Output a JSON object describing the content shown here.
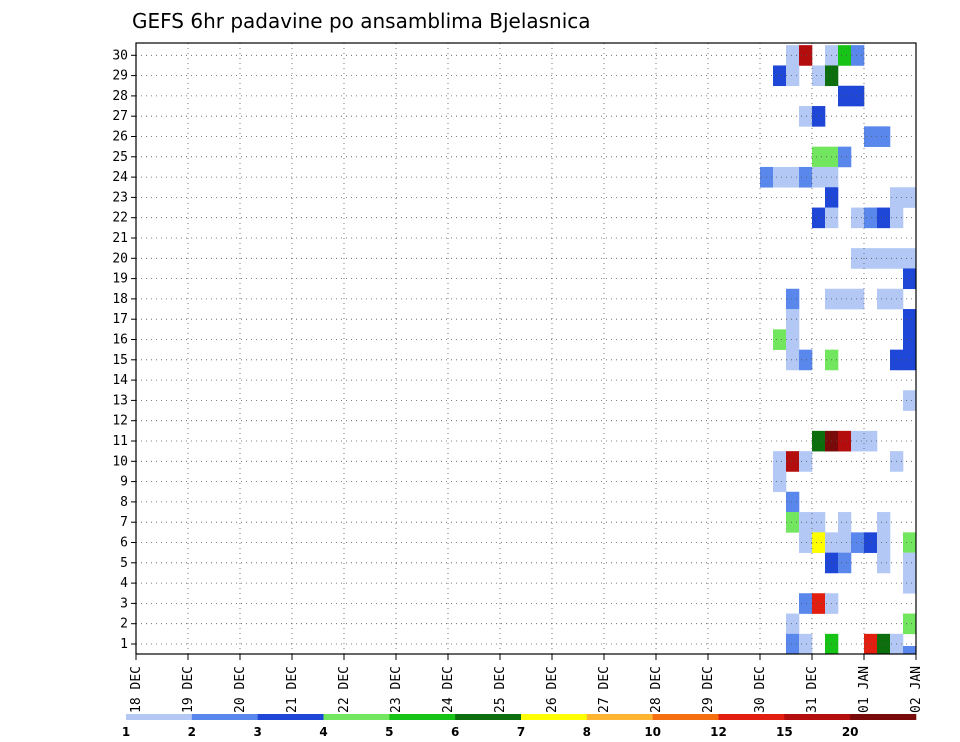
{
  "chart_data": {
    "type": "heatmap",
    "title": "GEFS 6hr padavine po ansamblima Bjelasnica",
    "x_tick_labels": [
      "18 DEC",
      "19 DEC",
      "20 DEC",
      "21 DEC",
      "22 DEC",
      "23 DEC",
      "24 DEC",
      "25 DEC",
      "26 DEC",
      "27 DEC",
      "28 DEC",
      "29 DEC",
      "30 DEC",
      "31 DEC",
      "01 JAN",
      "02 JAN"
    ],
    "y_tick_labels": [
      "1",
      "2",
      "3",
      "4",
      "5",
      "6",
      "7",
      "8",
      "9",
      "10",
      "11",
      "12",
      "13",
      "14",
      "15",
      "16",
      "17",
      "18",
      "19",
      "20",
      "21",
      "22",
      "23",
      "24",
      "25",
      "26",
      "27",
      "28",
      "29",
      "30"
    ],
    "x_range_days": [
      0,
      15
    ],
    "steps_per_day": 4,
    "member_range": [
      1,
      30
    ],
    "grid": true,
    "colorbar": {
      "labels": [
        "1",
        "2",
        "3",
        "4",
        "5",
        "6",
        "7",
        "8",
        "10",
        "12",
        "15",
        "20"
      ],
      "colors": [
        "#b4c8f5",
        "#5a87eb",
        "#1e46d7",
        "#73e65f",
        "#17c317",
        "#0d6e0d",
        "#ffff00",
        "#ffb432",
        "#f56e0f",
        "#e11e0f",
        "#b40d0d",
        "#780a0a"
      ]
    },
    "levels_note": "cells: [member, timestep_index, color_class_index]",
    "cells": [
      [
        30,
        50,
        0
      ],
      [
        30,
        51,
        10
      ],
      [
        30,
        53,
        0
      ],
      [
        30,
        54,
        4
      ],
      [
        30,
        55,
        1
      ],
      [
        30,
        62,
        0
      ],
      [
        30,
        63,
        2
      ],
      [
        30,
        64,
        2
      ],
      [
        30,
        69,
        3
      ],
      [
        29,
        49,
        2
      ],
      [
        29,
        50,
        0
      ],
      [
        29,
        52,
        0
      ],
      [
        29,
        53,
        5
      ],
      [
        29,
        61,
        0
      ],
      [
        29,
        62,
        1
      ],
      [
        29,
        64,
        1
      ],
      [
        29,
        69,
        0
      ],
      [
        29,
        70,
        0
      ],
      [
        28,
        54,
        2
      ],
      [
        28,
        55,
        2
      ],
      [
        28,
        64,
        4
      ],
      [
        28,
        65,
        11
      ],
      [
        28,
        66,
        10
      ],
      [
        28,
        67,
        9
      ],
      [
        28,
        68,
        1
      ],
      [
        28,
        69,
        3
      ],
      [
        28,
        70,
        4
      ],
      [
        28,
        71,
        0
      ],
      [
        28,
        74,
        4
      ],
      [
        28,
        76,
        1
      ],
      [
        28,
        77,
        2
      ],
      [
        28,
        78,
        6
      ],
      [
        28,
        79,
        2
      ],
      [
        28,
        80,
        0
      ],
      [
        28,
        88,
        0
      ],
      [
        28,
        89,
        1
      ],
      [
        27,
        51,
        0
      ],
      [
        27,
        52,
        2
      ],
      [
        27,
        62,
        0
      ],
      [
        27,
        69,
        0
      ],
      [
        27,
        79,
        0
      ],
      [
        27,
        80,
        3
      ],
      [
        27,
        82,
        0
      ],
      [
        26,
        56,
        1
      ],
      [
        26,
        57,
        1
      ],
      [
        26,
        60,
        0
      ],
      [
        26,
        61,
        1
      ],
      [
        26,
        62,
        4
      ],
      [
        26,
        63,
        1
      ],
      [
        26,
        64,
        1
      ],
      [
        26,
        65,
        0
      ],
      [
        26,
        66,
        3
      ],
      [
        26,
        67,
        0
      ],
      [
        26,
        68,
        3
      ],
      [
        26,
        69,
        2
      ],
      [
        26,
        70,
        0
      ],
      [
        26,
        71,
        0
      ],
      [
        26,
        72,
        0
      ],
      [
        26,
        74,
        0
      ],
      [
        26,
        75,
        1
      ],
      [
        26,
        89,
        0
      ],
      [
        25,
        52,
        3
      ],
      [
        25,
        53,
        3
      ],
      [
        25,
        54,
        1
      ],
      [
        25,
        61,
        4
      ],
      [
        25,
        62,
        2
      ],
      [
        25,
        64,
        2
      ],
      [
        25,
        65,
        2
      ],
      [
        25,
        75,
        0
      ],
      [
        25,
        76,
        1
      ],
      [
        25,
        78,
        4
      ],
      [
        25,
        79,
        3
      ],
      [
        25,
        80,
        0
      ],
      [
        25,
        81,
        0
      ],
      [
        25,
        83,
        6
      ],
      [
        25,
        84,
        0
      ],
      [
        25,
        90,
        9
      ],
      [
        24,
        48,
        1
      ],
      [
        24,
        49,
        0
      ],
      [
        24,
        50,
        0
      ],
      [
        24,
        51,
        1
      ],
      [
        24,
        52,
        0
      ],
      [
        24,
        53,
        0
      ],
      [
        24,
        62,
        2
      ],
      [
        24,
        63,
        0
      ],
      [
        24,
        64,
        0
      ],
      [
        24,
        77,
        2
      ],
      [
        24,
        78,
        2
      ],
      [
        24,
        79,
        6
      ],
      [
        24,
        80,
        6
      ],
      [
        24,
        83,
        2
      ],
      [
        24,
        84,
        0
      ],
      [
        24,
        85,
        1
      ],
      [
        24,
        86,
        0
      ],
      [
        23,
        53,
        2
      ],
      [
        23,
        58,
        0
      ],
      [
        23,
        59,
        0
      ],
      [
        23,
        60,
        0
      ],
      [
        23,
        61,
        0
      ],
      [
        23,
        85,
        1
      ],
      [
        23,
        86,
        1
      ],
      [
        22,
        52,
        2
      ],
      [
        22,
        53,
        0
      ],
      [
        22,
        55,
        0
      ],
      [
        22,
        56,
        1
      ],
      [
        22,
        57,
        2
      ],
      [
        22,
        58,
        0
      ],
      [
        22,
        60,
        11
      ],
      [
        22,
        61,
        9
      ],
      [
        22,
        62,
        0
      ],
      [
        22,
        63,
        0
      ],
      [
        22,
        65,
        1
      ],
      [
        22,
        66,
        4
      ],
      [
        22,
        67,
        1
      ],
      [
        22,
        68,
        0
      ],
      [
        22,
        72,
        0
      ],
      [
        22,
        73,
        5
      ],
      [
        22,
        74,
        11
      ],
      [
        22,
        75,
        1
      ],
      [
        22,
        87,
        0
      ],
      [
        22,
        88,
        2
      ],
      [
        22,
        89,
        9
      ],
      [
        21,
        70,
        3
      ],
      [
        21,
        71,
        1
      ],
      [
        21,
        74,
        2
      ],
      [
        21,
        75,
        9
      ],
      [
        21,
        76,
        10
      ],
      [
        21,
        77,
        11
      ],
      [
        21,
        78,
        0
      ],
      [
        21,
        80,
        2
      ],
      [
        21,
        81,
        0
      ],
      [
        20,
        55,
        0
      ],
      [
        20,
        56,
        0
      ],
      [
        20,
        57,
        0
      ],
      [
        20,
        58,
        0
      ],
      [
        20,
        59,
        0
      ],
      [
        20,
        60,
        0
      ],
      [
        20,
        61,
        0
      ],
      [
        19,
        59,
        2
      ],
      [
        19,
        60,
        11
      ],
      [
        19,
        61,
        11
      ],
      [
        19,
        62,
        11
      ],
      [
        19,
        63,
        11
      ],
      [
        19,
        64,
        11
      ],
      [
        19,
        65,
        11
      ],
      [
        19,
        74,
        0
      ],
      [
        18,
        50,
        1
      ],
      [
        18,
        53,
        0
      ],
      [
        18,
        54,
        0
      ],
      [
        18,
        55,
        0
      ],
      [
        18,
        57,
        0
      ],
      [
        18,
        58,
        0
      ],
      [
        18,
        64,
        1
      ],
      [
        18,
        65,
        3
      ],
      [
        18,
        66,
        5
      ],
      [
        18,
        67,
        2
      ],
      [
        18,
        68,
        5
      ],
      [
        18,
        69,
        2
      ],
      [
        18,
        70,
        2
      ],
      [
        18,
        71,
        0
      ],
      [
        17,
        50,
        0
      ],
      [
        17,
        59,
        2
      ],
      [
        17,
        82,
        0
      ],
      [
        17,
        83,
        0
      ],
      [
        17,
        84,
        0
      ],
      [
        17,
        85,
        0
      ],
      [
        17,
        86,
        0
      ],
      [
        17,
        87,
        0
      ],
      [
        17,
        88,
        0
      ],
      [
        16,
        49,
        3
      ],
      [
        16,
        50,
        0
      ],
      [
        16,
        59,
        2
      ],
      [
        16,
        82,
        0
      ],
      [
        16,
        83,
        0
      ],
      [
        16,
        84,
        0
      ],
      [
        16,
        85,
        0
      ],
      [
        16,
        86,
        0
      ],
      [
        16,
        87,
        0
      ],
      [
        16,
        88,
        0
      ],
      [
        15,
        50,
        0
      ],
      [
        15,
        51,
        1
      ],
      [
        15,
        53,
        3
      ],
      [
        15,
        58,
        2
      ],
      [
        15,
        59,
        2
      ],
      [
        15,
        61,
        1
      ],
      [
        15,
        64,
        4
      ],
      [
        15,
        65,
        3
      ],
      [
        15,
        66,
        0
      ],
      [
        15,
        67,
        0
      ],
      [
        15,
        68,
        0
      ],
      [
        15,
        79,
        3
      ],
      [
        15,
        80,
        11
      ],
      [
        15,
        81,
        10
      ],
      [
        15,
        82,
        2
      ],
      [
        15,
        84,
        0
      ],
      [
        15,
        85,
        9
      ],
      [
        15,
        86,
        5
      ],
      [
        15,
        87,
        0
      ],
      [
        15,
        88,
        0
      ],
      [
        15,
        89,
        5
      ],
      [
        14,
        61,
        0
      ],
      [
        14,
        62,
        9
      ],
      [
        14,
        63,
        6
      ],
      [
        14,
        64,
        0
      ],
      [
        14,
        82,
        2
      ],
      [
        14,
        80,
        0
      ],
      [
        14,
        81,
        0
      ],
      [
        13,
        59,
        0
      ],
      [
        13,
        73,
        0
      ],
      [
        13,
        74,
        2
      ],
      [
        13,
        75,
        0
      ],
      [
        13,
        86,
        4
      ],
      [
        12,
        64,
        5
      ],
      [
        12,
        65,
        2
      ],
      [
        12,
        66,
        2
      ],
      [
        12,
        67,
        0
      ],
      [
        12,
        70,
        0
      ],
      [
        12,
        71,
        2
      ],
      [
        12,
        72,
        2
      ],
      [
        12,
        85,
        0
      ],
      [
        11,
        52,
        5
      ],
      [
        11,
        53,
        11
      ],
      [
        11,
        54,
        10
      ],
      [
        11,
        55,
        0
      ],
      [
        11,
        56,
        0
      ],
      [
        11,
        81,
        2
      ],
      [
        10,
        49,
        0
      ],
      [
        10,
        50,
        10
      ],
      [
        10,
        51,
        0
      ],
      [
        10,
        58,
        0
      ],
      [
        10,
        63,
        1
      ],
      [
        10,
        73,
        2
      ],
      [
        10,
        76,
        0
      ],
      [
        10,
        78,
        0
      ],
      [
        10,
        79,
        0
      ],
      [
        10,
        80,
        0
      ],
      [
        10,
        81,
        0
      ],
      [
        10,
        82,
        0
      ],
      [
        9,
        49,
        0
      ],
      [
        9,
        65,
        1
      ],
      [
        9,
        66,
        5
      ],
      [
        9,
        67,
        9
      ],
      [
        9,
        68,
        5
      ],
      [
        9,
        69,
        6
      ],
      [
        9,
        73,
        6
      ],
      [
        9,
        74,
        0
      ],
      [
        9,
        75,
        0
      ],
      [
        9,
        80,
        0
      ],
      [
        9,
        81,
        0
      ],
      [
        9,
        82,
        0
      ],
      [
        8,
        50,
        1
      ],
      [
        8,
        66,
        1
      ],
      [
        8,
        67,
        1
      ],
      [
        8,
        85,
        3
      ],
      [
        8,
        86,
        3
      ],
      [
        7,
        50,
        3
      ],
      [
        7,
        51,
        0
      ],
      [
        7,
        52,
        0
      ],
      [
        7,
        54,
        0
      ],
      [
        7,
        57,
        0
      ],
      [
        7,
        60,
        9
      ],
      [
        7,
        61,
        0
      ],
      [
        7,
        62,
        0
      ],
      [
        7,
        70,
        4
      ],
      [
        7,
        71,
        3
      ],
      [
        6,
        51,
        0
      ],
      [
        6,
        52,
        6
      ],
      [
        6,
        53,
        0
      ],
      [
        6,
        54,
        0
      ],
      [
        6,
        55,
        1
      ],
      [
        6,
        56,
        2
      ],
      [
        6,
        57,
        0
      ],
      [
        6,
        59,
        3
      ],
      [
        6,
        83,
        0
      ],
      [
        6,
        84,
        1
      ],
      [
        6,
        85,
        3
      ],
      [
        6,
        86,
        11
      ],
      [
        6,
        87,
        6
      ],
      [
        6,
        88,
        9
      ],
      [
        6,
        89,
        1
      ],
      [
        5,
        53,
        2
      ],
      [
        5,
        54,
        1
      ],
      [
        5,
        57,
        0
      ],
      [
        5,
        59,
        0
      ],
      [
        5,
        60,
        0
      ],
      [
        5,
        61,
        0
      ],
      [
        5,
        62,
        0
      ],
      [
        5,
        69,
        0
      ],
      [
        5,
        72,
        1
      ],
      [
        5,
        73,
        0
      ],
      [
        5,
        74,
        0
      ],
      [
        5,
        75,
        0
      ],
      [
        5,
        76,
        0
      ],
      [
        5,
        77,
        0
      ],
      [
        5,
        78,
        0
      ],
      [
        4,
        59,
        0
      ],
      [
        4,
        60,
        4
      ],
      [
        4,
        61,
        6
      ],
      [
        4,
        62,
        4
      ],
      [
        4,
        63,
        3
      ],
      [
        4,
        64,
        6
      ],
      [
        4,
        65,
        5
      ],
      [
        4,
        66,
        0
      ],
      [
        4,
        67,
        2
      ],
      [
        4,
        68,
        10
      ],
      [
        4,
        69,
        9
      ],
      [
        4,
        70,
        0
      ],
      [
        4,
        73,
        6
      ],
      [
        4,
        74,
        5
      ],
      [
        4,
        75,
        4
      ],
      [
        4,
        76,
        2
      ],
      [
        4,
        78,
        0
      ],
      [
        4,
        79,
        2
      ],
      [
        3,
        51,
        1
      ],
      [
        3,
        52,
        9
      ],
      [
        3,
        53,
        0
      ],
      [
        3,
        60,
        0
      ],
      [
        3,
        61,
        4
      ],
      [
        3,
        62,
        10
      ],
      [
        3,
        63,
        0
      ],
      [
        3,
        64,
        0
      ],
      [
        3,
        65,
        5
      ],
      [
        3,
        66,
        5
      ],
      [
        3,
        67,
        5
      ],
      [
        3,
        68,
        0
      ],
      [
        3,
        69,
        3
      ],
      [
        3,
        70,
        3
      ],
      [
        3,
        71,
        4
      ],
      [
        3,
        73,
        0
      ],
      [
        3,
        74,
        3
      ],
      [
        3,
        75,
        4
      ],
      [
        3,
        76,
        3
      ],
      [
        2,
        50,
        0
      ],
      [
        2,
        59,
        3
      ],
      [
        2,
        60,
        1
      ],
      [
        2,
        61,
        0
      ],
      [
        2,
        62,
        0
      ],
      [
        2,
        63,
        3
      ],
      [
        2,
        64,
        1
      ],
      [
        2,
        65,
        1
      ],
      [
        2,
        89,
        0
      ],
      [
        1,
        50,
        1
      ],
      [
        1,
        51,
        0
      ],
      [
        1,
        53,
        4
      ],
      [
        1,
        56,
        9
      ],
      [
        1,
        57,
        5
      ],
      [
        1,
        58,
        0
      ],
      [
        1,
        63,
        1
      ],
      [
        1,
        64,
        1
      ],
      [
        1,
        65,
        0
      ],
      [
        1,
        81,
        0
      ],
      [
        1,
        82,
        4
      ],
      [
        1,
        83,
        1
      ],
      [
        1,
        89,
        3
      ],
      [
        0,
        59,
        1
      ],
      [
        0,
        60,
        2
      ],
      [
        0,
        61,
        4
      ],
      [
        0,
        62,
        6
      ],
      [
        0,
        63,
        2
      ],
      [
        0,
        65,
        2
      ],
      [
        0,
        84,
        0
      ]
    ]
  }
}
